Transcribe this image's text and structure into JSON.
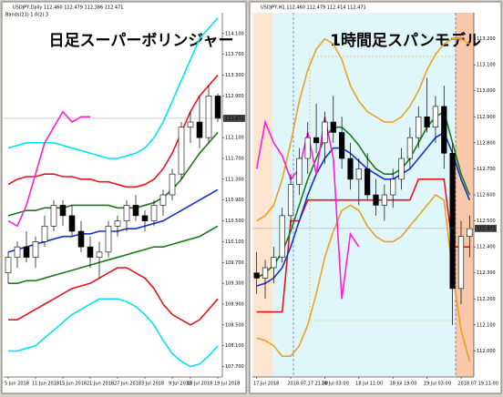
{
  "chart_data": [
    {
      "type": "candlestick",
      "title": "USDJPY,Daily  112.460 112.479 112.386 112.471",
      "subtitle": "Bands(21) 1.0(2) 3",
      "annotation": "日足スーパーボリンジャー",
      "categories": [
        "5 Jun 2018",
        null,
        null,
        "11 Jun 2018",
        null,
        null,
        "15 Jun 2018",
        null,
        null,
        "21 Jun 2018",
        null,
        null,
        "27 Jun 2018",
        null,
        null,
        "3 Jul 2018",
        null,
        null,
        "9 Jul 2018",
        null,
        "13 Jul 2018",
        null,
        null,
        "19 Jul 2018"
      ],
      "ohlc": {
        "open": [
          109.5,
          109.8,
          110.0,
          109.8,
          110.1,
          110.4,
          110.8,
          110.6,
          110.3,
          110.0,
          109.8,
          109.9,
          110.4,
          110.5,
          110.8,
          110.6,
          110.5,
          110.8,
          111.0,
          111.4,
          112.3,
          112.4,
          112.1,
          112.9
        ],
        "high": [
          109.9,
          110.1,
          110.3,
          110.2,
          110.6,
          110.9,
          110.9,
          110.8,
          110.5,
          110.2,
          110.1,
          110.5,
          110.6,
          110.9,
          111.0,
          110.7,
          110.9,
          111.1,
          111.5,
          112.4,
          112.6,
          112.9,
          113.1,
          112.95
        ],
        "low": [
          109.3,
          109.6,
          109.7,
          109.6,
          110.0,
          110.3,
          110.4,
          110.2,
          109.9,
          109.6,
          109.4,
          109.8,
          110.2,
          110.3,
          110.5,
          110.3,
          110.4,
          110.6,
          110.9,
          111.3,
          112.0,
          111.9,
          112.0,
          112.4
        ],
        "close": [
          109.8,
          110.0,
          109.8,
          110.1,
          110.4,
          110.8,
          110.6,
          110.3,
          110.0,
          109.8,
          109.9,
          110.4,
          110.5,
          110.8,
          110.6,
          110.5,
          110.8,
          111.0,
          111.4,
          112.3,
          112.4,
          112.1,
          112.9,
          112.47
        ]
      },
      "series": [
        {
          "color": "#00e5ee",
          "values": [
            111.9,
            111.95,
            112.0,
            112.0,
            112.0,
            112.0,
            111.95,
            111.9,
            111.85,
            111.8,
            111.75,
            111.7,
            111.7,
            111.75,
            111.8,
            111.9,
            112.1,
            112.4,
            112.8,
            113.2,
            113.6,
            114.0,
            114.2,
            114.4
          ]
        },
        {
          "color": "#00e5ee",
          "values": [
            108.0,
            108.0,
            108.05,
            108.1,
            108.25,
            108.4,
            108.55,
            108.7,
            108.8,
            108.9,
            109.0,
            109.0,
            109.0,
            108.95,
            108.85,
            108.7,
            108.5,
            108.2,
            107.95,
            107.8,
            107.7,
            107.75,
            107.9,
            108.1
          ]
        },
        {
          "color": "#e8141c",
          "values": [
            111.2,
            111.3,
            111.35,
            111.35,
            111.4,
            111.4,
            111.35,
            111.35,
            111.3,
            111.3,
            111.25,
            111.25,
            111.2,
            111.15,
            111.15,
            111.2,
            111.3,
            111.5,
            111.8,
            112.2,
            112.6,
            112.9,
            113.1,
            113.3
          ]
        },
        {
          "color": "#e8141c",
          "values": [
            108.6,
            108.6,
            108.7,
            108.8,
            108.9,
            109.0,
            109.1,
            109.2,
            109.25,
            109.3,
            109.4,
            109.5,
            109.6,
            109.6,
            109.5,
            109.4,
            109.2,
            108.9,
            108.7,
            108.6,
            108.5,
            108.6,
            108.8,
            109.0
          ]
        },
        {
          "color": "#1a7a1a",
          "values": [
            110.6,
            110.65,
            110.7,
            110.7,
            110.75,
            110.75,
            110.75,
            110.8,
            110.8,
            110.8,
            110.8,
            110.8,
            110.75,
            110.75,
            110.75,
            110.8,
            110.85,
            110.95,
            111.1,
            111.3,
            111.55,
            111.8,
            112.0,
            112.2
          ]
        },
        {
          "color": "#1a7a1a",
          "values": [
            109.3,
            109.3,
            109.35,
            109.35,
            109.4,
            109.45,
            109.5,
            109.55,
            109.6,
            109.65,
            109.7,
            109.75,
            109.8,
            109.85,
            109.9,
            109.95,
            110.0,
            110.0,
            110.05,
            110.1,
            110.15,
            110.2,
            110.3,
            110.4
          ]
        },
        {
          "color": "#1432d0",
          "values": [
            109.9,
            109.95,
            110.0,
            110.05,
            110.1,
            110.15,
            110.2,
            110.2,
            110.25,
            110.25,
            110.3,
            110.3,
            110.3,
            110.35,
            110.35,
            110.4,
            110.45,
            110.5,
            110.6,
            110.7,
            110.8,
            110.9,
            111.0,
            111.1
          ]
        },
        {
          "color": "#ff1ed2",
          "values": [
            110.5,
            110.4,
            110.8,
            111.4,
            112.0,
            112.3,
            112.6,
            112.4,
            112.5,
            112.5,
            null,
            null,
            null,
            null,
            null,
            null,
            null,
            null,
            null,
            null,
            null,
            null,
            null,
            null
          ]
        }
      ],
      "ylim": [
        107.5,
        114.5
      ],
      "yticks": [
        {
          "value": 107.7,
          "label": "107.700"
        },
        {
          "value": 108.1,
          "label": "108.100"
        },
        {
          "value": 108.5,
          "label": "108.500"
        },
        {
          "value": 108.9,
          "label": "108.900"
        },
        {
          "value": 109.3,
          "label": "109.300"
        },
        {
          "value": 109.7,
          "label": "109.700"
        },
        {
          "value": 110.1,
          "label": "110.100"
        },
        {
          "value": 110.5,
          "label": "110.500"
        },
        {
          "value": 110.9,
          "label": "110.900"
        },
        {
          "value": 111.3,
          "label": "111.300"
        },
        {
          "value": 111.7,
          "label": "111.700"
        },
        {
          "value": 112.1,
          "label": "112.100"
        },
        {
          "value": 112.5,
          "label": "112.500"
        },
        {
          "value": 112.9,
          "label": "112.900"
        },
        {
          "value": 113.3,
          "label": "113.300"
        },
        {
          "value": 113.7,
          "label": "113.700"
        },
        {
          "value": 114.1,
          "label": "114.100"
        }
      ],
      "last_price": {
        "value": 112.471,
        "label": "112.471"
      },
      "grid": false
    },
    {
      "type": "candlestick",
      "title": "USDJPY,H1  112.460 112.479 112.414 112.471",
      "annotation": "1時間足スパンモデル",
      "categories": [
        "17 Jul 2018",
        null,
        null,
        null,
        "2018.07.17 21:00",
        null,
        null,
        null,
        "18 Jul 03:00",
        null,
        null,
        null,
        "18 Jul 11:00",
        null,
        null,
        null,
        "18 Jul 19:00",
        null,
        null,
        null,
        "19 Jul 03:00",
        null,
        null,
        null,
        "2018.07.19 11:00",
        null
      ],
      "ohlc": {
        "open": [
          112.3,
          112.28,
          112.32,
          112.36,
          112.52,
          112.64,
          112.74,
          112.82,
          112.8,
          112.88,
          112.84,
          112.74,
          112.66,
          112.7,
          112.6,
          112.56,
          112.6,
          112.66,
          112.74,
          112.82,
          112.9,
          112.86,
          112.94,
          112.76,
          112.24,
          112.44
        ],
        "high": [
          112.38,
          112.35,
          112.4,
          112.55,
          112.68,
          112.78,
          112.88,
          112.95,
          112.92,
          112.98,
          112.9,
          112.8,
          112.74,
          112.76,
          112.66,
          112.64,
          112.7,
          112.78,
          112.86,
          112.94,
          113.05,
          112.98,
          113.02,
          112.8,
          112.5,
          112.52
        ],
        "low": [
          112.22,
          112.2,
          112.26,
          112.34,
          112.48,
          112.6,
          112.68,
          112.76,
          112.72,
          112.8,
          112.7,
          112.62,
          112.56,
          112.58,
          112.52,
          112.5,
          112.55,
          112.62,
          112.7,
          112.78,
          112.84,
          112.8,
          112.7,
          112.1,
          112.18,
          112.36
        ],
        "close": [
          112.28,
          112.32,
          112.36,
          112.52,
          112.64,
          112.74,
          112.82,
          112.8,
          112.88,
          112.84,
          112.74,
          112.66,
          112.7,
          112.6,
          112.56,
          112.6,
          112.66,
          112.74,
          112.82,
          112.9,
          112.86,
          112.94,
          112.76,
          112.24,
          112.44,
          112.47
        ]
      },
      "series": [
        {
          "color": "#f0a020",
          "values": [
            112.5,
            112.52,
            112.56,
            112.66,
            112.8,
            112.96,
            113.08,
            113.16,
            113.2,
            113.18,
            113.12,
            113.02,
            112.96,
            112.92,
            112.9,
            112.88,
            112.88,
            112.9,
            112.94,
            113.0,
            113.08,
            113.14,
            113.18,
            113.2,
            113.2,
            113.18
          ]
        },
        {
          "color": "#f0a020",
          "values": [
            112.05,
            112.04,
            112.02,
            111.98,
            111.98,
            112.02,
            112.1,
            112.22,
            112.36,
            112.46,
            112.54,
            112.56,
            112.54,
            112.48,
            112.44,
            112.42,
            112.42,
            112.44,
            112.48,
            112.52,
            112.56,
            112.6,
            112.58,
            112.3,
            112.08,
            111.96
          ]
        },
        {
          "color": "#e8141c",
          "values": [
            112.15,
            112.15,
            112.15,
            112.15,
            112.5,
            112.5,
            112.58,
            112.58,
            112.58,
            112.58,
            112.58,
            112.58,
            112.58,
            112.58,
            112.58,
            112.58,
            112.58,
            112.58,
            112.58,
            112.66,
            112.66,
            112.66,
            112.66,
            112.4,
            112.4,
            112.4
          ]
        },
        {
          "color": "#1a7a1a",
          "values": [
            112.28,
            112.3,
            112.33,
            112.38,
            112.46,
            112.56,
            112.66,
            112.74,
            112.82,
            112.86,
            112.86,
            112.83,
            112.79,
            112.74,
            112.7,
            112.68,
            112.68,
            112.7,
            112.74,
            112.8,
            112.86,
            112.9,
            112.92,
            112.8,
            112.68,
            112.6
          ]
        },
        {
          "color": "#1432d0",
          "values": [
            112.25,
            112.26,
            112.28,
            112.32,
            112.4,
            112.5,
            112.6,
            112.68,
            112.74,
            112.78,
            112.78,
            112.76,
            112.73,
            112.7,
            112.68,
            112.66,
            112.66,
            112.68,
            112.7,
            112.74,
            112.78,
            112.82,
            112.84,
            112.76,
            112.66,
            112.58
          ]
        },
        {
          "color": "#ff1ed2",
          "values": [
            112.7,
            112.88,
            112.8,
            112.75,
            112.66,
            112.7,
            112.84,
            112.68,
            112.9,
            112.74,
            112.2,
            112.45,
            112.4,
            null,
            null,
            null,
            null,
            null,
            null,
            null,
            null,
            null,
            null,
            null,
            null,
            null
          ]
        }
      ],
      "ylim": [
        111.9,
        113.3
      ],
      "yticks": [
        {
          "value": 112.0,
          "label": "112.000"
        },
        {
          "value": 112.1,
          "label": "112.100"
        },
        {
          "value": 112.2,
          "label": "112.200"
        },
        {
          "value": 112.3,
          "label": "112.300"
        },
        {
          "value": 112.4,
          "label": "112.400"
        },
        {
          "value": 112.5,
          "label": "112.500"
        },
        {
          "value": 112.6,
          "label": "112.600"
        },
        {
          "value": 112.7,
          "label": "112.700"
        },
        {
          "value": 112.8,
          "label": "112.800"
        },
        {
          "value": 112.9,
          "label": "112.900"
        },
        {
          "value": 113.0,
          "label": "113.000"
        },
        {
          "value": 113.1,
          "label": "113.100"
        },
        {
          "value": 113.2,
          "label": "113.200"
        }
      ],
      "last_price": {
        "value": 112.471,
        "label": "112.471"
      },
      "grid": false
    }
  ]
}
